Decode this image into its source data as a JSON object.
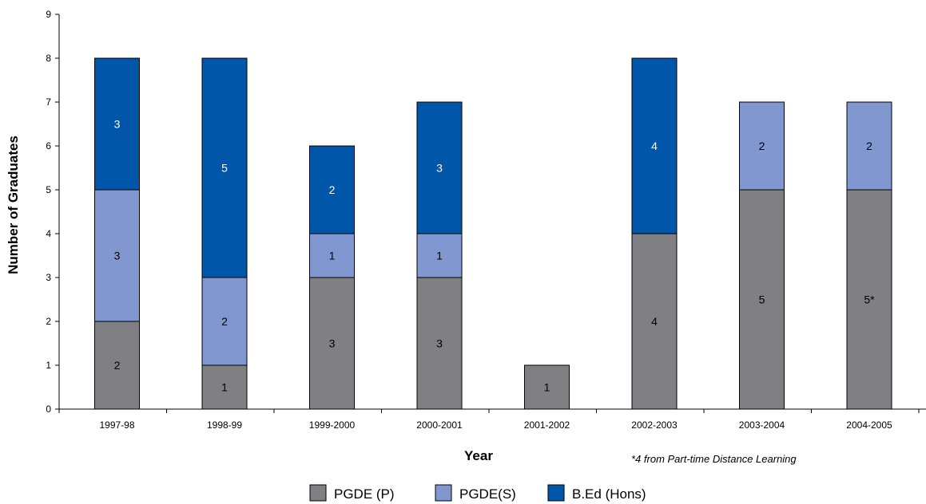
{
  "chart_data": {
    "type": "bar",
    "stacked": true,
    "title": "",
    "xlabel": "Year",
    "ylabel": "Number of Graduates",
    "ylim": [
      0,
      9
    ],
    "yticks": [
      "0",
      "1",
      "2",
      "3",
      "4",
      "5",
      "6",
      "7",
      "8",
      "9"
    ],
    "categories": [
      "1997-98",
      "1998-99",
      "1999-2000",
      "2000-2001",
      "2001-2002",
      "2002-2003",
      "2003-2004",
      "2004-2005"
    ],
    "series": [
      {
        "name": "PGDE (P)",
        "color": "#7f7f84",
        "text_color": "#000000",
        "values": [
          2,
          1,
          3,
          3,
          1,
          4,
          5,
          5
        ],
        "labels": [
          "2",
          "1",
          "3",
          "3",
          "1",
          "4",
          "5",
          "5*"
        ]
      },
      {
        "name": "PGDE(S)",
        "color": "#8197cf",
        "text_color": "#000000",
        "values": [
          3,
          2,
          1,
          1,
          0,
          0,
          2,
          2
        ],
        "labels": [
          "3",
          "2",
          "1",
          "1",
          "",
          "",
          "2",
          "2"
        ]
      },
      {
        "name": "B.Ed (Hons)",
        "color": "#0056a8",
        "text_color": "#ffffff",
        "values": [
          3,
          5,
          2,
          3,
          0,
          4,
          0,
          0
        ],
        "labels": [
          "3",
          "5",
          "2",
          "3",
          "",
          "4",
          "",
          ""
        ]
      }
    ],
    "annotations": [
      "*4 from Part-time Distance Learning"
    ],
    "grid": false,
    "legend_position": "bottom"
  }
}
